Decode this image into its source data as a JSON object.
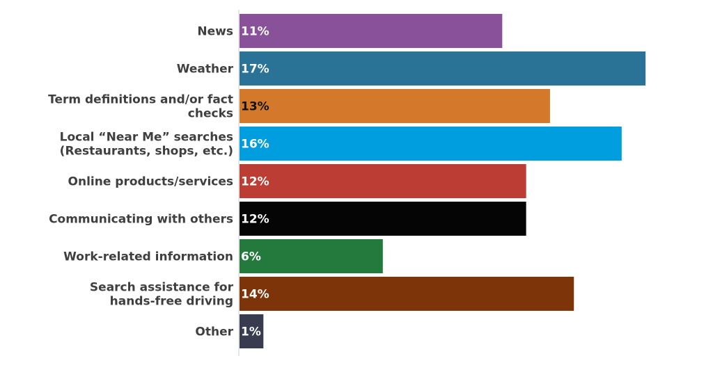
{
  "chart_data": {
    "type": "bar",
    "orientation": "horizontal",
    "title": "",
    "xlabel": "",
    "ylabel": "",
    "xlim": [
      0,
      17.2
    ],
    "grid": false,
    "legend": "none",
    "categories": [
      [
        "News"
      ],
      [
        "Weather"
      ],
      [
        "Term definitions and/or fact",
        "checks"
      ],
      [
        "Local “Near Me” searches",
        "(Restaurants, shops, etc.)"
      ],
      [
        "Online products/services"
      ],
      [
        "Communicating with others"
      ],
      [
        "Work-related information"
      ],
      [
        "Search assistance for",
        "hands-free driving"
      ],
      [
        "Other"
      ]
    ],
    "values": [
      11,
      17,
      13,
      16,
      12,
      12,
      6,
      14,
      1
    ],
    "value_labels": [
      "11%",
      "17%",
      "13%",
      "16%",
      "12%",
      "12%",
      "6%",
      "14%",
      "1%"
    ],
    "colors": [
      "#8a519b",
      "#2a7396",
      "#d4792b",
      "#009ede",
      "#bb3d33",
      "#050505",
      "#237a3c",
      "#7e3409",
      "#383c4e"
    ],
    "label_colors": [
      "#ffffff",
      "#ffffff",
      "#111111",
      "#ffffff",
      "#ffffff",
      "#ffffff",
      "#ffffff",
      "#ffffff",
      "#ffffff"
    ],
    "axis_color": "#cccccc"
  }
}
